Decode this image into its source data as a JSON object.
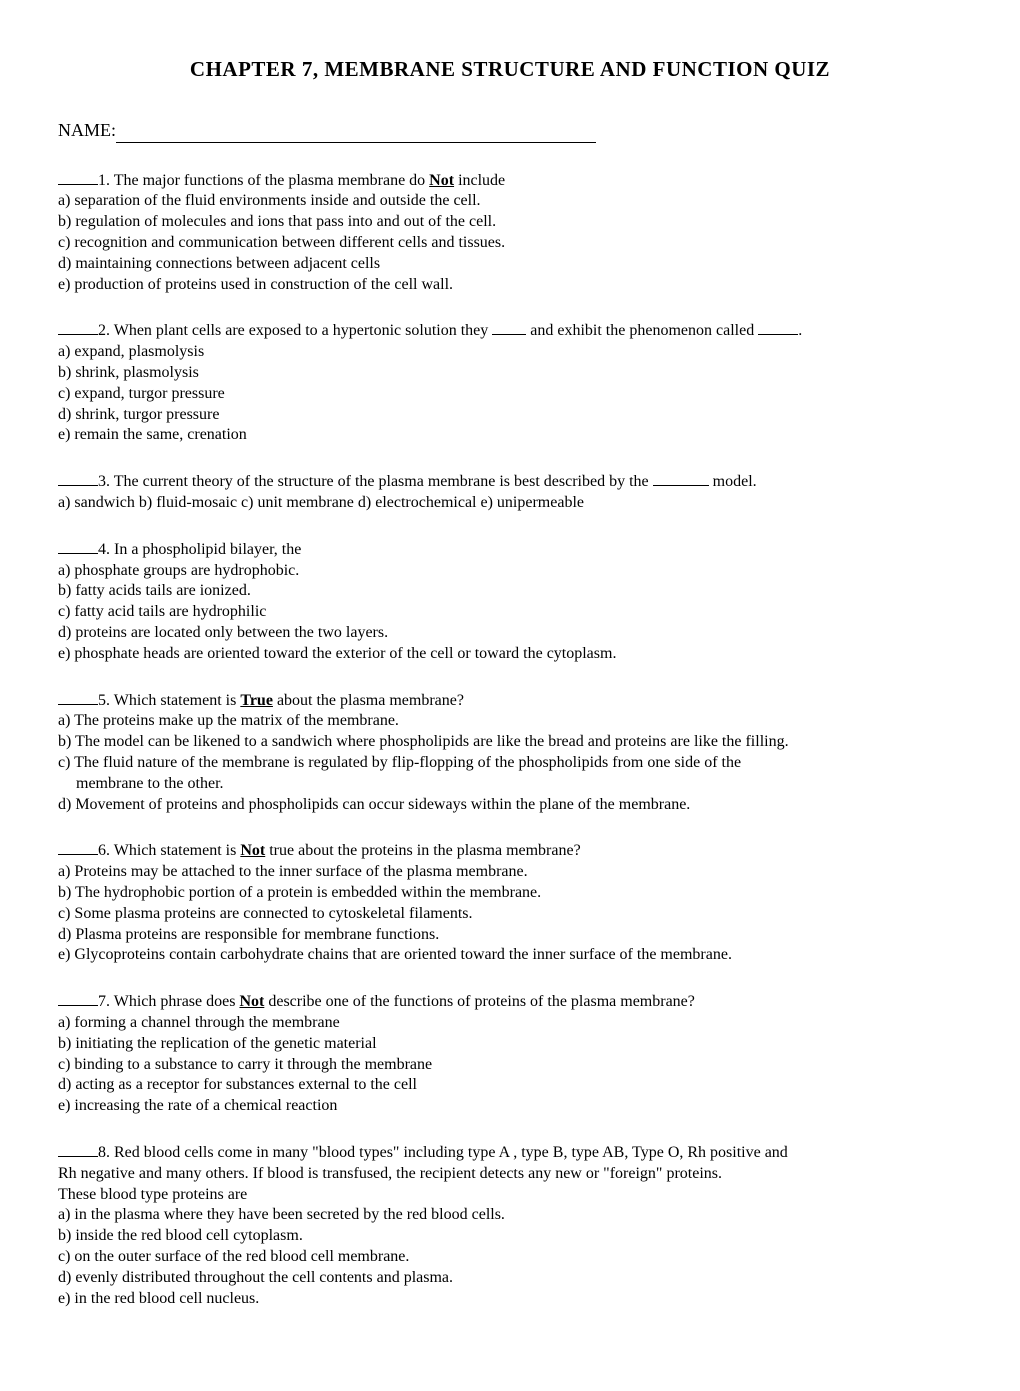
{
  "title": "CHAPTER 7, MEMBRANE STRUCTURE AND FUNCTION QUIZ",
  "name_label": "NAME:",
  "q1": {
    "num": "1",
    "prompt_pre": "1. The major functions of the plasma membrane do ",
    "emph": "Not",
    "prompt_post": " include",
    "a": "a) separation of the fluid environments inside and outside the cell.",
    "b": "b) regulation of molecules and ions that pass into and out of the cell.",
    "c": "c) recognition and communication between different cells and tissues.",
    "d": "d) maintaining connections between adjacent cells",
    "e": "e) production of proteins used in construction of the cell wall."
  },
  "q2": {
    "prompt_pre": "2. When plant cells are exposed to a hypertonic solution they ",
    "prompt_mid": " and exhibit the phenomenon called ",
    "prompt_post": ".",
    "a": "a) expand, plasmolysis",
    "b": "b) shrink, plasmolysis",
    "c": "c) expand, turgor pressure",
    "d": "d) shrink, turgor pressure",
    "e": "e) remain the same, crenation"
  },
  "q3": {
    "prompt_pre": "3. The current theory of the structure of the plasma membrane is best described by the ",
    "prompt_post": " model.",
    "opts": "a) sandwich   b) fluid-mosaic   c) unit membrane   d) electrochemical   e) unipermeable"
  },
  "q4": {
    "prompt": "4. In a phospholipid bilayer, the",
    "a": "a) phosphate groups are hydrophobic.",
    "b": "b) fatty acids tails are ionized.",
    "c": "c) fatty acid tails are hydrophilic",
    "d": "d) proteins are located only between the two layers.",
    "e": "e) phosphate heads are oriented toward the exterior of the cell or toward the cytoplasm."
  },
  "q5": {
    "prompt_pre": "5. Which statement is ",
    "emph": "True",
    "prompt_post": " about the plasma membrane?",
    "a": "a) The proteins make up the matrix of the membrane.",
    "b": "b) The model can be likened to a sandwich where phospholipids are like the bread and proteins are like the filling.",
    "c1": "c) The fluid nature of the membrane is regulated by flip-flopping of the phospholipids from one side of the",
    "c2": "membrane to the other.",
    "d": "d) Movement of proteins and phospholipids can occur sideways within the plane of the membrane."
  },
  "q6": {
    "prompt_pre": "6. Which statement is ",
    "emph": "Not",
    "prompt_post": " true about the proteins in the plasma membrane?",
    "a": "a) Proteins may be attached to the inner surface of the plasma membrane.",
    "b": "b) The hydrophobic portion of a protein is embedded within the membrane.",
    "c": "c) Some plasma proteins are connected to cytoskeletal filaments.",
    "d": "d) Plasma proteins are responsible for membrane functions.",
    "e": "e) Glycoproteins contain carbohydrate chains that are oriented toward the inner surface of the membrane."
  },
  "q7": {
    "prompt_pre": "7. Which phrase does ",
    "emph": "Not",
    "prompt_post": " describe one of the functions of proteins of the plasma membrane?",
    "a": "a) forming a channel through the membrane",
    "b": "b) initiating the replication of the genetic material",
    "c": "c) binding to a substance to carry it through the membrane",
    "d": "d) acting as a receptor for substances external to the cell",
    "e": "e) increasing the rate of a chemical reaction"
  },
  "q8": {
    "prompt1": "8. Red blood cells come in many \"blood types\" including type A , type B, type AB, Type O, Rh positive and",
    "prompt2": "Rh negative and many others. If blood is transfused, the recipient detects any new or \"foreign\" proteins.",
    "prompt3": "These blood type proteins are",
    "a": "a) in the plasma where they have been secreted by the red blood cells.",
    "b": "b) inside the red blood cell cytoplasm.",
    "c": "c) on the outer surface of the red blood cell membrane.",
    "d": "d) evenly distributed throughout the cell contents and plasma.",
    "e": "e) in the red blood cell nucleus."
  }
}
